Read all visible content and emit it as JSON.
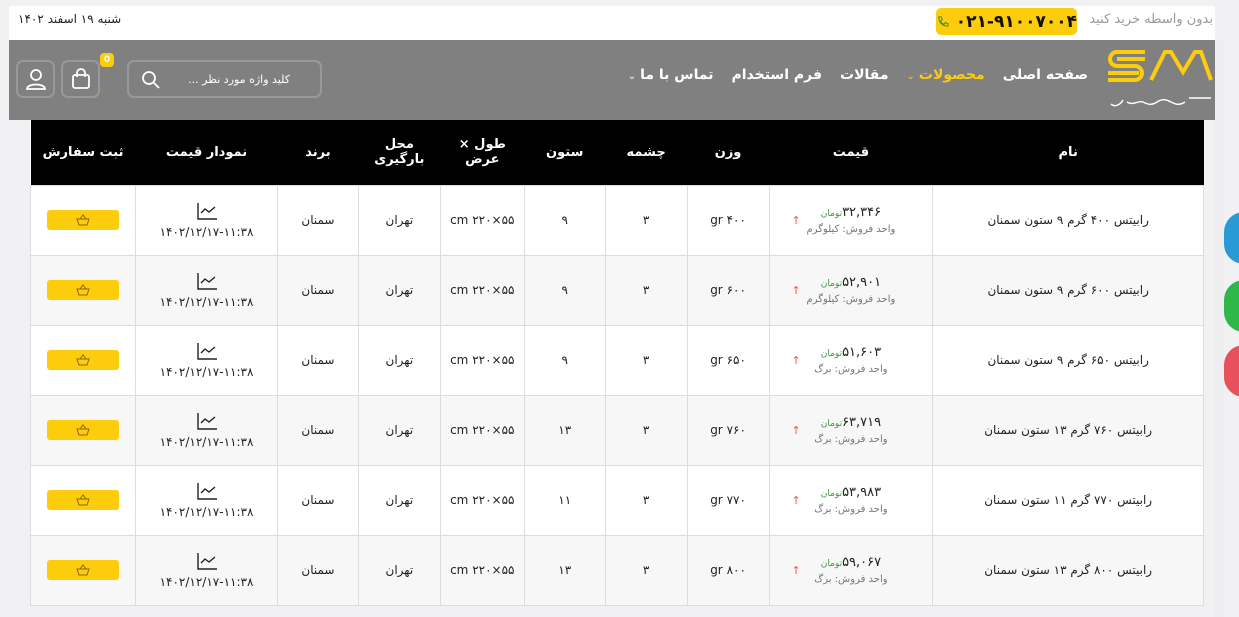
{
  "topbar": {
    "tagline": "بدون واسطه خرید کنید",
    "phone": "۰۲۱-۹۱۰۰۷۰۰۴",
    "date": "شنبه ۱۹ اسفند ۱۴۰۲"
  },
  "logo": {
    "text": "شهر مفتول",
    "letters": "SM"
  },
  "nav": {
    "items": [
      {
        "label": "صفحه اصلی"
      },
      {
        "label": "محصولات",
        "active": true,
        "dropdown": true
      },
      {
        "label": "مقالات"
      },
      {
        "label": "فرم استخدام"
      },
      {
        "label": "تماس با ما",
        "dropdown": true
      }
    ],
    "search_placeholder": "کلید واژه مورد نظر ...",
    "cart_count": "0"
  },
  "colors": {
    "accent": "#fdcc0d",
    "nav_bg": "#808080",
    "header_bg": "#000000"
  },
  "table": {
    "headers": [
      "نام",
      "قیمت",
      "وزن",
      "چشمه",
      "ستون",
      "طول × عرض",
      "محل بارگیری",
      "برند",
      "نمودار قیمت",
      "ثبت سفارش"
    ],
    "currency": "تومان",
    "rows": [
      {
        "name": "رابیتس ۴۰۰ گرم ۹ ستون سمنان",
        "price": "۳۲,۳۴۶",
        "unit": "واحد فروش: کیلوگرم",
        "weight": "۴۰۰ gr",
        "cheshme": "۳",
        "sotoon": "۹",
        "size": "۵۵×۲۲۰ cm",
        "location": "تهران",
        "brand": "سمنان",
        "updated": "۱۴۰۲/۱۲/۱۷-۱۱:۳۸"
      },
      {
        "name": "رابیتس ۶۰۰ گرم ۹ ستون سمنان",
        "price": "۵۲,۹۰۱",
        "unit": "واحد فروش: کیلوگرم",
        "weight": "۶۰۰ gr",
        "cheshme": "۳",
        "sotoon": "۹",
        "size": "۵۵×۲۲۰ cm",
        "location": "تهران",
        "brand": "سمنان",
        "updated": "۱۴۰۲/۱۲/۱۷-۱۱:۳۸"
      },
      {
        "name": "رابیتس ۶۵۰ گرم ۹ ستون سمنان",
        "price": "۵۱,۶۰۳",
        "unit": "واحد فروش: برگ",
        "weight": "۶۵۰ gr",
        "cheshme": "۳",
        "sotoon": "۹",
        "size": "۵۵×۲۲۰ cm",
        "location": "تهران",
        "brand": "سمنان",
        "updated": "۱۴۰۲/۱۲/۱۷-۱۱:۳۸"
      },
      {
        "name": "رابیتس ۷۶۰ گرم ۱۳ ستون سمنان",
        "price": "۶۳,۷۱۹",
        "unit": "واحد فروش: برگ",
        "weight": "۷۶۰ gr",
        "cheshme": "۳",
        "sotoon": "۱۳",
        "size": "۵۵×۲۲۰ cm",
        "location": "تهران",
        "brand": "سمنان",
        "updated": "۱۴۰۲/۱۲/۱۷-۱۱:۳۸"
      },
      {
        "name": "رابیتس ۷۷۰ گرم ۱۱ ستون سمنان",
        "price": "۵۳,۹۸۳",
        "unit": "واحد فروش: برگ",
        "weight": "۷۷۰ gr",
        "cheshme": "۳",
        "sotoon": "۱۱",
        "size": "۵۵×۲۲۰ cm",
        "location": "تهران",
        "brand": "سمنان",
        "updated": "۱۴۰۲/۱۲/۱۷-۱۱:۳۸"
      },
      {
        "name": "رابیتس ۸۰۰ گرم ۱۳ ستون سمنان",
        "price": "۵۹,۰۶۷",
        "unit": "واحد فروش: برگ",
        "weight": "۸۰۰ gr",
        "cheshme": "۳",
        "sotoon": "۱۳",
        "size": "۵۵×۲۲۰ cm",
        "location": "تهران",
        "brand": "سمنان",
        "updated": "۱۴۰۲/۱۲/۱۷-۱۱:۳۸"
      }
    ]
  }
}
